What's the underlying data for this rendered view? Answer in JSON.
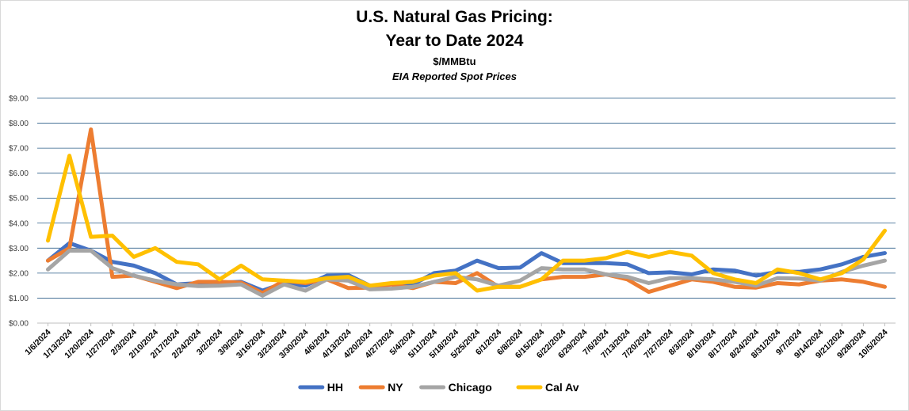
{
  "chart_data": {
    "type": "line",
    "title": "U.S. Natural Gas Pricing:",
    "title_line2": "Year to Date 2024",
    "unit": "$/MMBtu",
    "subtitle": "EIA Reported Spot Prices",
    "ylim": [
      0,
      9
    ],
    "yticks": [
      "$0.00",
      "$1.00",
      "$2.00",
      "$3.00",
      "$4.00",
      "$5.00",
      "$6.00",
      "$7.00",
      "$8.00",
      "$9.00"
    ],
    "grid": true,
    "legend_position": "bottom",
    "x": [
      "1/6/2024",
      "1/13/2024",
      "1/20/2024",
      "1/27/2024",
      "2/3/2024",
      "2/10/2024",
      "2/17/2024",
      "2/24/2024",
      "3/2/2024",
      "3/9/2024",
      "3/16/2024",
      "3/23/2024",
      "3/30/2024",
      "4/6/2024",
      "4/13/2024",
      "4/20/2024",
      "4/27/2024",
      "5/4/2024",
      "5/11/2024",
      "5/18/2024",
      "5/25/2024",
      "6/1/2024",
      "6/8/2024",
      "6/15/2024",
      "6/22/2024",
      "6/29/2024",
      "7/6/2024",
      "7/13/2024",
      "7/20/2024",
      "7/27/2024",
      "8/3/2024",
      "8/10/2024",
      "8/17/2024",
      "8/24/2024",
      "8/31/2024",
      "9/7/2024",
      "9/14/2024",
      "9/21/2024",
      "9/28/2024",
      "10/5/2024"
    ],
    "series": [
      {
        "name": "HH",
        "color": "#4472C4",
        "values": [
          2.5,
          3.2,
          2.9,
          2.45,
          2.3,
          2.0,
          1.55,
          1.6,
          1.62,
          1.65,
          1.3,
          1.6,
          1.5,
          1.9,
          1.92,
          1.5,
          1.55,
          1.55,
          2.0,
          2.1,
          2.5,
          2.2,
          2.22,
          2.8,
          2.4,
          2.4,
          2.4,
          2.35,
          2.0,
          2.03,
          1.95,
          2.15,
          2.1,
          1.9,
          2.05,
          2.05,
          2.15,
          2.35,
          2.65,
          2.8
        ]
      },
      {
        "name": "NY",
        "color": "#ED7D31",
        "values": [
          2.5,
          3.0,
          7.75,
          1.85,
          1.9,
          1.65,
          1.4,
          1.65,
          1.65,
          1.62,
          1.2,
          1.7,
          1.6,
          1.75,
          1.4,
          1.42,
          1.55,
          1.4,
          1.65,
          1.6,
          2.0,
          1.45,
          1.45,
          1.75,
          1.85,
          1.85,
          1.95,
          1.75,
          1.25,
          1.5,
          1.75,
          1.65,
          1.45,
          1.42,
          1.6,
          1.55,
          1.7,
          1.75,
          1.65,
          1.45
        ]
      },
      {
        "name": "Chicago",
        "color": "#A5A5A5",
        "values": [
          2.15,
          2.9,
          2.9,
          2.2,
          1.9,
          1.7,
          1.55,
          1.48,
          1.5,
          1.55,
          1.1,
          1.55,
          1.3,
          1.75,
          1.7,
          1.35,
          1.38,
          1.45,
          1.65,
          1.85,
          1.75,
          1.5,
          1.7,
          2.2,
          2.15,
          2.15,
          1.95,
          1.85,
          1.6,
          1.8,
          1.8,
          1.75,
          1.65,
          1.5,
          1.8,
          1.78,
          1.7,
          2.05,
          2.3,
          2.5
        ]
      },
      {
        "name": "Cal Av",
        "color": "#FFC000",
        "values": [
          3.3,
          6.7,
          3.45,
          3.5,
          2.65,
          3.0,
          2.45,
          2.35,
          1.75,
          2.3,
          1.75,
          1.7,
          1.65,
          1.8,
          1.85,
          1.5,
          1.6,
          1.65,
          1.9,
          2.0,
          1.3,
          1.45,
          1.45,
          1.75,
          2.5,
          2.5,
          2.6,
          2.85,
          2.65,
          2.85,
          2.7,
          2.0,
          1.75,
          1.6,
          2.15,
          2.0,
          1.75,
          2.0,
          2.55,
          3.7
        ]
      }
    ]
  }
}
